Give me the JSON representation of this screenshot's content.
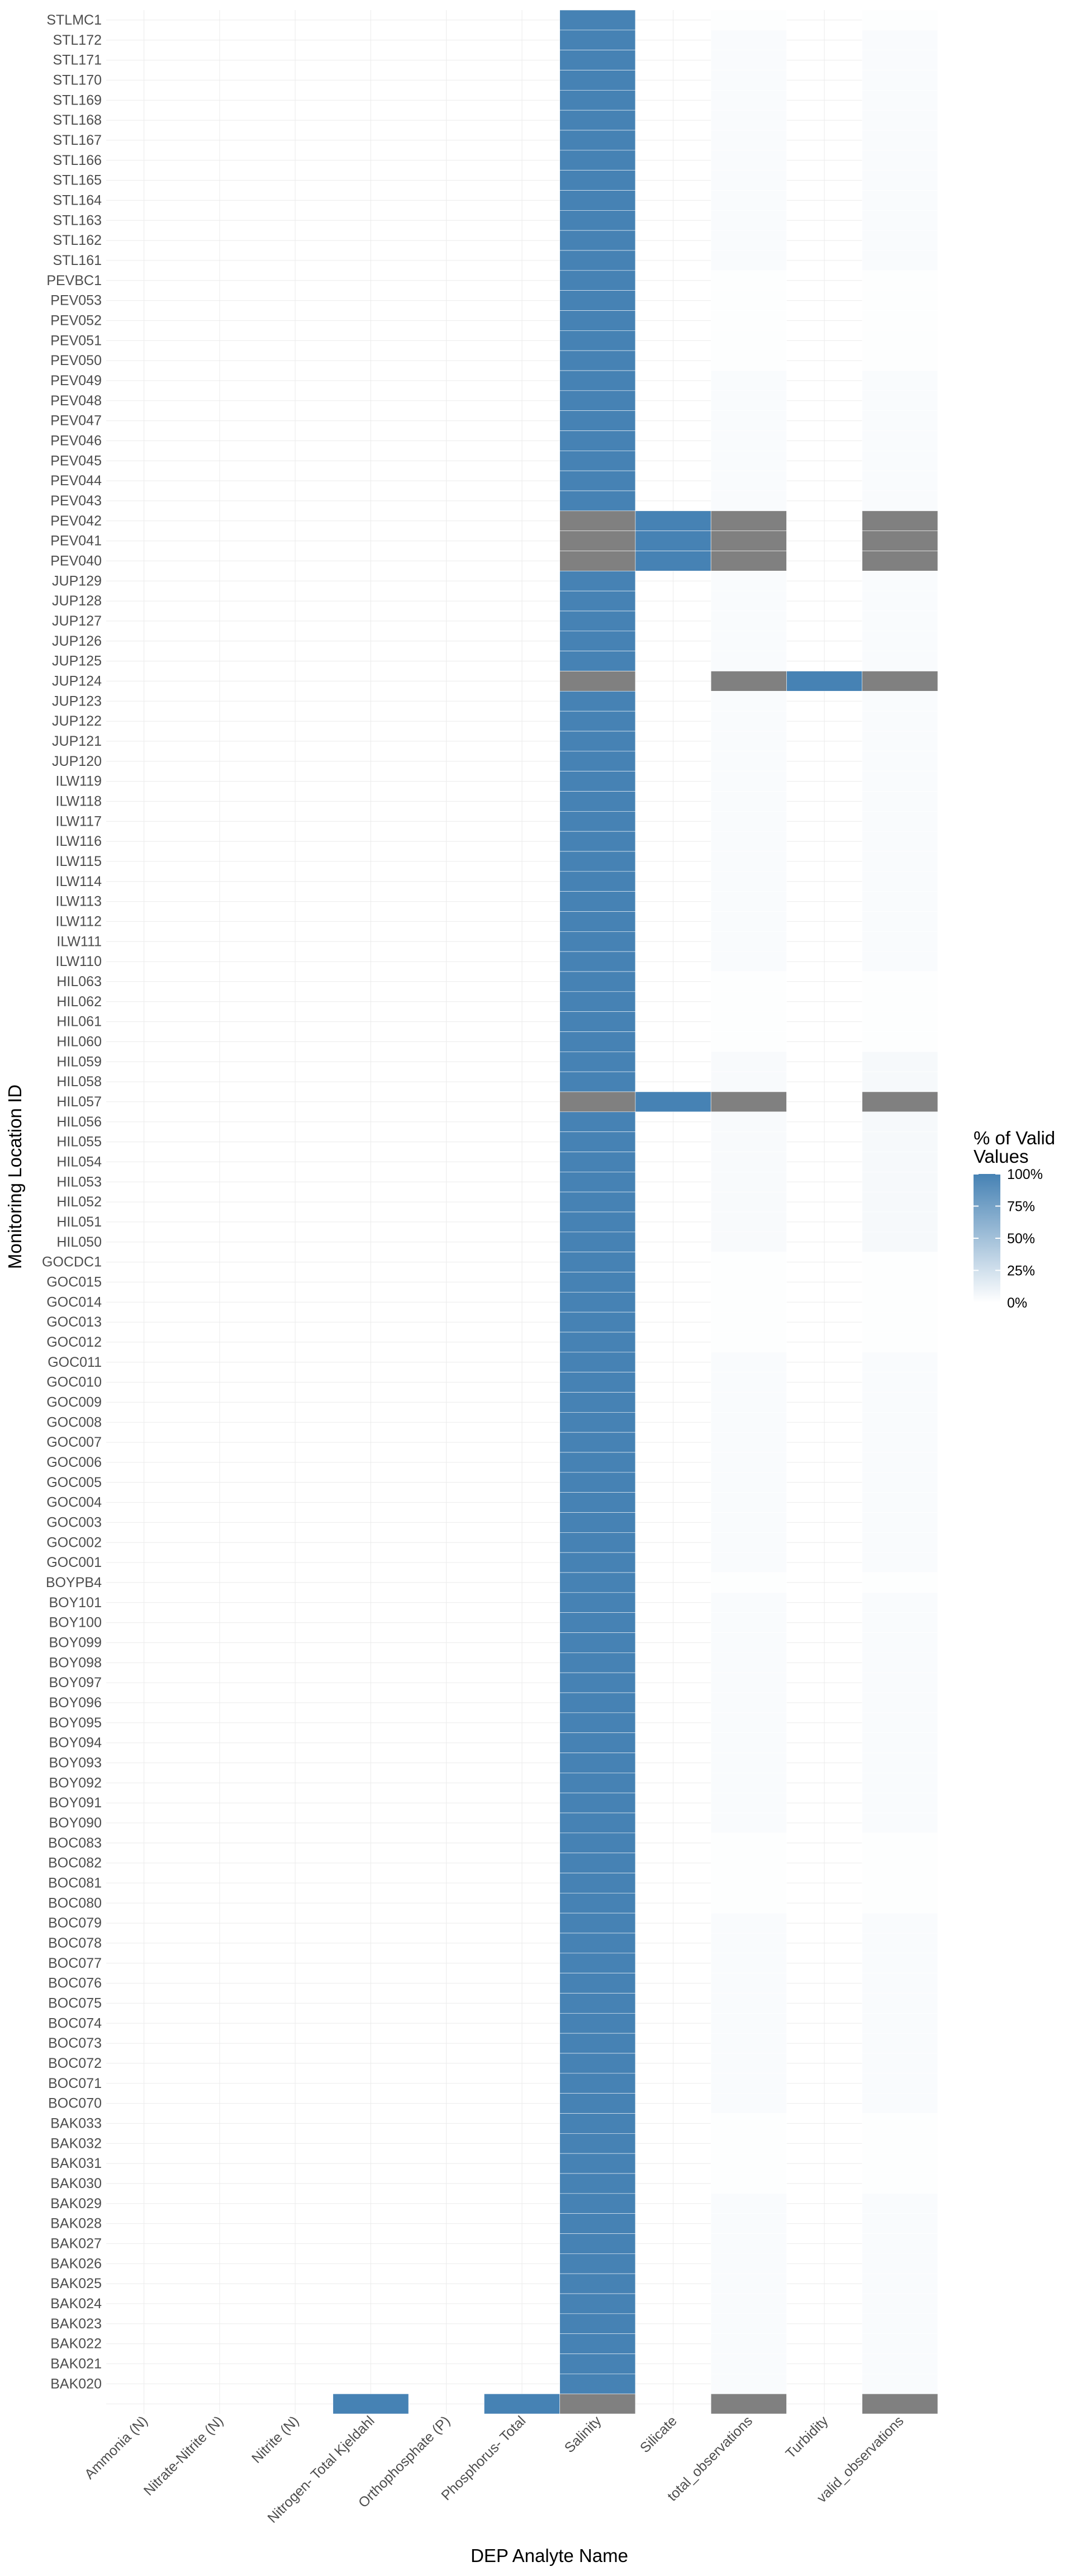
{
  "chart_data": {
    "type": "heatmap",
    "title": "",
    "xlabel": "DEP Analyte Name",
    "ylabel": "Monitoring Location ID",
    "x_categories": [
      "Ammonia (N)",
      "Nitrate-Nitrite (N)",
      "Nitrite (N)",
      "Nitrogen- Total Kjeldahl",
      "Orthophosphate (P)",
      "Phosphorus- Total",
      "Salinity",
      "Silicate",
      "total_observations",
      "Turbidity",
      "valid_observations"
    ],
    "y_categories": [
      "STLMC1",
      "STL172",
      "STL171",
      "STL170",
      "STL169",
      "STL168",
      "STL167",
      "STL166",
      "STL165",
      "STL164",
      "STL163",
      "STL162",
      "STL161",
      "PEVBC1",
      "PEV053",
      "PEV052",
      "PEV051",
      "PEV050",
      "PEV049",
      "PEV048",
      "PEV047",
      "PEV046",
      "PEV045",
      "PEV044",
      "PEV043",
      "PEV042",
      "PEV041",
      "PEV040",
      "JUP129",
      "JUP128",
      "JUP127",
      "JUP126",
      "JUP125",
      "JUP124",
      "JUP123",
      "JUP122",
      "JUP121",
      "JUP120",
      "ILW119",
      "ILW118",
      "ILW117",
      "ILW116",
      "ILW115",
      "ILW114",
      "ILW113",
      "ILW112",
      "ILW111",
      "ILW110",
      "HIL063",
      "HIL062",
      "HIL061",
      "HIL060",
      "HIL059",
      "HIL058",
      "HIL057",
      "HIL056",
      "HIL055",
      "HIL054",
      "HIL053",
      "HIL052",
      "HIL051",
      "HIL050",
      "GOCDC1",
      "GOC015",
      "GOC014",
      "GOC013",
      "GOC012",
      "GOC011",
      "GOC010",
      "GOC009",
      "GOC008",
      "GOC007",
      "GOC006",
      "GOC005",
      "GOC004",
      "GOC003",
      "GOC002",
      "GOC001",
      "BOYPB4",
      "BOY101",
      "BOY100",
      "BOY099",
      "BOY098",
      "BOY097",
      "BOY096",
      "BOY095",
      "BOY094",
      "BOY093",
      "BOY092",
      "BOY091",
      "BOY090",
      "BOC083",
      "BOC082",
      "BOC081",
      "BOC080",
      "BOC079",
      "BOC078",
      "BOC077",
      "BOC076",
      "BOC075",
      "BOC074",
      "BOC073",
      "BOC072",
      "BOC071",
      "BOC070",
      "BAK033",
      "BAK032",
      "BAK031",
      "BAK030",
      "BAK029",
      "BAK028",
      "BAK027",
      "BAK026",
      "BAK025",
      "BAK024",
      "BAK023",
      "BAK022",
      "BAK021",
      "BAK020",
      ""
    ],
    "default_cells": {
      "Salinity": 100,
      "total_observations": 3,
      "valid_observations": 3
    },
    "row_overrides": {
      "STLMC1": {
        "total_observations": 1,
        "valid_observations": 1
      },
      "PEVBC1": {
        "total_observations": 1,
        "valid_observations": 1
      },
      "PEV053": {
        "total_observations": 1,
        "valid_observations": 1
      },
      "PEV052": {
        "total_observations": 1,
        "valid_observations": 1
      },
      "PEV051": {
        "total_observations": 1,
        "valid_observations": 1
      },
      "PEV050": {
        "total_observations": 1,
        "valid_observations": 1
      },
      "PEV042": {
        "Salinity": null,
        "Silicate": 100,
        "total_observations": null,
        "valid_observations": null
      },
      "PEV041": {
        "Salinity": null,
        "Silicate": 100,
        "total_observations": null,
        "valid_observations": null
      },
      "PEV040": {
        "Salinity": null,
        "Silicate": 100,
        "total_observations": null,
        "valid_observations": null
      },
      "JUP124": {
        "Salinity": null,
        "Turbidity": 100,
        "total_observations": null,
        "valid_observations": null
      },
      "HIL063": {
        "total_observations": 1,
        "valid_observations": 1
      },
      "HIL062": {
        "total_observations": 1,
        "valid_observations": 1
      },
      "HIL061": {
        "total_observations": 1,
        "valid_observations": 1
      },
      "HIL060": {
        "total_observations": 1,
        "valid_observations": 1
      },
      "HIL059": {
        "total_observations": 4,
        "valid_observations": 5
      },
      "HIL058": {
        "total_observations": 4,
        "valid_observations": 5
      },
      "HIL057": {
        "Salinity": null,
        "Silicate": 100,
        "total_observations": null,
        "valid_observations": null
      },
      "HIL056": {
        "total_observations": 4,
        "valid_observations": 5
      },
      "HIL055": {
        "total_observations": 4,
        "valid_observations": 5
      },
      "HIL054": {
        "total_observations": 4,
        "valid_observations": 5
      },
      "HIL053": {
        "total_observations": 4,
        "valid_observations": 5
      },
      "HIL052": {
        "total_observations": 4,
        "valid_observations": 5
      },
      "HIL051": {
        "total_observations": 4,
        "valid_observations": 5
      },
      "HIL050": {
        "total_observations": 4,
        "valid_observations": 5
      },
      "GOCDC1": {
        "total_observations": 1,
        "valid_observations": 1
      },
      "GOC015": {
        "total_observations": 1,
        "valid_observations": 1
      },
      "GOC014": {
        "total_observations": 1,
        "valid_observations": 1
      },
      "GOC013": {
        "total_observations": 1,
        "valid_observations": 1
      },
      "GOC012": {
        "total_observations": 1,
        "valid_observations": 1
      },
      "BOYPB4": {
        "total_observations": 1,
        "valid_observations": 1
      },
      "BOC083": {
        "total_observations": 1,
        "valid_observations": 1
      },
      "BOC082": {
        "total_observations": 1,
        "valid_observations": 1
      },
      "BOC081": {
        "total_observations": 1,
        "valid_observations": 1
      },
      "BOC080": {
        "total_observations": 1,
        "valid_observations": 1
      },
      "BAK033": {
        "total_observations": 1,
        "valid_observations": 1
      },
      "BAK032": {
        "total_observations": 1,
        "valid_observations": 1
      },
      "BAK031": {
        "total_observations": 1,
        "valid_observations": 1
      },
      "BAK030": {
        "total_observations": 1,
        "valid_observations": 1
      },
      "": {
        "Salinity": null,
        "total_observations": null,
        "valid_observations": null,
        "Nitrogen- Total Kjeldahl": 100,
        "Phosphorus- Total": 100
      }
    },
    "na_color": "#808080",
    "legend": {
      "title": "% of Valid Values",
      "title_lines": [
        "% of Valid",
        "Values"
      ],
      "ticks": [
        "100%",
        "75%",
        "50%",
        "25%",
        "0%"
      ],
      "tick_values": [
        100,
        75,
        50,
        25,
        0
      ],
      "low_color": "#ffffff",
      "high_color": "#4682b4",
      "placement": "right"
    },
    "grid": true
  }
}
